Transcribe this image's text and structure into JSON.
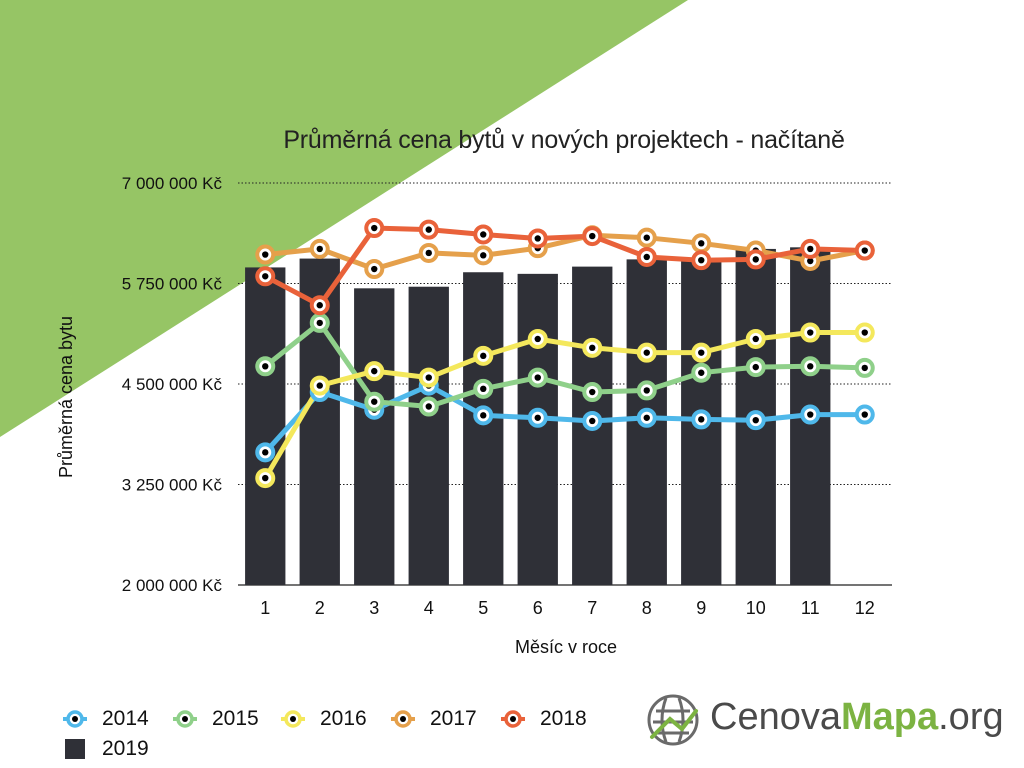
{
  "colors": {
    "background_accent": "#96c565",
    "bar_2019": "#2f3037",
    "s2014": "#4fb8ea",
    "s2015": "#8fd08a",
    "s2016": "#f4e85c",
    "s2017": "#e5a04b",
    "s2018": "#e9623a",
    "marker_dot": "#000000",
    "logo_green": "#7cb342",
    "logo_gray": "#4a4a4a"
  },
  "logo": {
    "icon": "globe-grid-icon",
    "text_light": "Cenova",
    "text_bold": "Mapa",
    "text_suffix": ".org"
  },
  "chart_data": {
    "type": "bar+line",
    "title": "Průměrná cena bytů v nových projektech - načítaně",
    "xlabel": "Měsíc v roce",
    "ylabel": "Průměrná cena bytu",
    "x": [
      1,
      2,
      3,
      4,
      5,
      6,
      7,
      8,
      9,
      10,
      11,
      12
    ],
    "x_tick_labels": [
      "1",
      "2",
      "3",
      "4",
      "5",
      "6",
      "7",
      "8",
      "9",
      "10",
      "11",
      "12"
    ],
    "ylim": [
      2000000,
      7000000
    ],
    "y_ticks": [
      2000000,
      3250000,
      4500000,
      5750000,
      7000000
    ],
    "y_tick_labels": [
      "2 000 000 Kč",
      "3 250 000 Kč",
      "4 500 000 Kč",
      "5 750 000 Kč",
      "7 000 000 Kč"
    ],
    "grid": "horizontal dotted",
    "legend_position": "bottom-left",
    "bars": {
      "name": "2019",
      "color_key": "bar_2019",
      "values": [
        5950000,
        6060000,
        5690000,
        5710000,
        5890000,
        5870000,
        5960000,
        6050000,
        6040000,
        6180000,
        6200000,
        null
      ]
    },
    "series": [
      {
        "name": "2014",
        "color_key": "s2014",
        "values": [
          3650000,
          4400000,
          4180000,
          4480000,
          4110000,
          4080000,
          4040000,
          4080000,
          4060000,
          4050000,
          4120000,
          4120000
        ]
      },
      {
        "name": "2015",
        "color_key": "s2015",
        "values": [
          4720000,
          5260000,
          4280000,
          4220000,
          4440000,
          4580000,
          4400000,
          4420000,
          4640000,
          4710000,
          4720000,
          4700000
        ]
      },
      {
        "name": "2016",
        "color_key": "s2016",
        "values": [
          3330000,
          4480000,
          4660000,
          4580000,
          4850000,
          5060000,
          4950000,
          4890000,
          4890000,
          5060000,
          5140000,
          5140000
        ]
      },
      {
        "name": "2017",
        "color_key": "s2017",
        "values": [
          6110000,
          6180000,
          5930000,
          6130000,
          6100000,
          6190000,
          6350000,
          6320000,
          6250000,
          6160000,
          6030000,
          6160000
        ]
      },
      {
        "name": "2018",
        "color_key": "s2018",
        "values": [
          5840000,
          5480000,
          6440000,
          6420000,
          6360000,
          6310000,
          6340000,
          6080000,
          6040000,
          6050000,
          6180000,
          6160000
        ]
      }
    ]
  }
}
